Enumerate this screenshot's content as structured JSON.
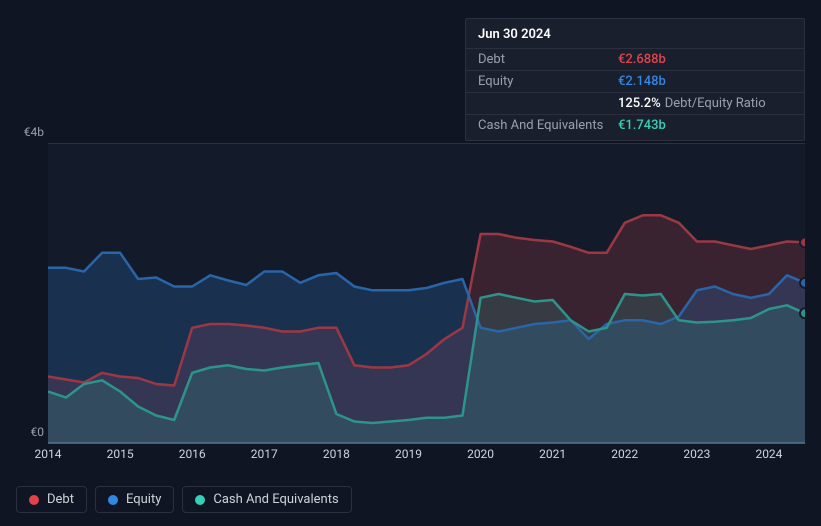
{
  "tooltip": {
    "date": "Jun 30 2024",
    "rows": [
      {
        "label": "Debt",
        "value": "€2.688b",
        "color": "#e2434b"
      },
      {
        "label": "Equity",
        "value": "€2.148b",
        "color": "#2f88e6"
      },
      {
        "label": "",
        "value": "125.2%",
        "extra": "Debt/Equity Ratio",
        "color": "#ffffff"
      },
      {
        "label": "Cash And Equivalents",
        "value": "€1.743b",
        "color": "#35d0b7"
      }
    ]
  },
  "chart": {
    "type": "area",
    "background_color": "#0f1523",
    "plot_bg": "rgba(30,37,54,0.35)",
    "grid_color": "#2a3040",
    "ylim": [
      0,
      4
    ],
    "y_ticks": [
      {
        "v": 0,
        "label": "€0"
      },
      {
        "v": 4,
        "label": "€4b"
      }
    ],
    "x_years": [
      2014,
      2015,
      2016,
      2017,
      2018,
      2019,
      2020,
      2021,
      2022,
      2023,
      2024
    ],
    "x_domain": [
      2014,
      2024.5
    ],
    "label_fontsize": 12,
    "label_color": "#9aa1ad",
    "series": [
      {
        "name": "Debt",
        "color": "#e2434b",
        "fill_opacity": 0.28,
        "line_width": 2.5,
        "data": [
          [
            2014.0,
            0.9
          ],
          [
            2014.25,
            0.86
          ],
          [
            2014.5,
            0.82
          ],
          [
            2014.75,
            0.95
          ],
          [
            2015.0,
            0.9
          ],
          [
            2015.25,
            0.88
          ],
          [
            2015.5,
            0.8
          ],
          [
            2015.75,
            0.78
          ],
          [
            2016.0,
            1.55
          ],
          [
            2016.25,
            1.6
          ],
          [
            2016.5,
            1.6
          ],
          [
            2016.75,
            1.58
          ],
          [
            2017.0,
            1.55
          ],
          [
            2017.25,
            1.5
          ],
          [
            2017.5,
            1.5
          ],
          [
            2017.75,
            1.55
          ],
          [
            2018.0,
            1.55
          ],
          [
            2018.25,
            1.05
          ],
          [
            2018.5,
            1.02
          ],
          [
            2018.75,
            1.02
          ],
          [
            2019.0,
            1.05
          ],
          [
            2019.25,
            1.2
          ],
          [
            2019.5,
            1.4
          ],
          [
            2019.75,
            1.55
          ],
          [
            2020.0,
            2.8
          ],
          [
            2020.25,
            2.8
          ],
          [
            2020.5,
            2.75
          ],
          [
            2020.75,
            2.72
          ],
          [
            2021.0,
            2.7
          ],
          [
            2021.25,
            2.63
          ],
          [
            2021.5,
            2.55
          ],
          [
            2021.75,
            2.55
          ],
          [
            2022.0,
            2.95
          ],
          [
            2022.25,
            3.05
          ],
          [
            2022.5,
            3.05
          ],
          [
            2022.75,
            2.95
          ],
          [
            2023.0,
            2.7
          ],
          [
            2023.25,
            2.7
          ],
          [
            2023.5,
            2.65
          ],
          [
            2023.75,
            2.6
          ],
          [
            2024.0,
            2.65
          ],
          [
            2024.25,
            2.7
          ],
          [
            2024.5,
            2.688
          ]
        ]
      },
      {
        "name": "Equity",
        "color": "#2f88e6",
        "fill_opacity": 0.3,
        "line_width": 2.5,
        "data": [
          [
            2014.0,
            2.35
          ],
          [
            2014.25,
            2.35
          ],
          [
            2014.5,
            2.3
          ],
          [
            2014.75,
            2.55
          ],
          [
            2015.0,
            2.55
          ],
          [
            2015.25,
            2.2
          ],
          [
            2015.5,
            2.22
          ],
          [
            2015.75,
            2.1
          ],
          [
            2016.0,
            2.1
          ],
          [
            2016.25,
            2.25
          ],
          [
            2016.5,
            2.18
          ],
          [
            2016.75,
            2.12
          ],
          [
            2017.0,
            2.3
          ],
          [
            2017.25,
            2.3
          ],
          [
            2017.5,
            2.15
          ],
          [
            2017.75,
            2.25
          ],
          [
            2018.0,
            2.28
          ],
          [
            2018.25,
            2.1
          ],
          [
            2018.5,
            2.05
          ],
          [
            2018.75,
            2.05
          ],
          [
            2019.0,
            2.05
          ],
          [
            2019.25,
            2.08
          ],
          [
            2019.5,
            2.15
          ],
          [
            2019.75,
            2.2
          ],
          [
            2020.0,
            1.55
          ],
          [
            2020.25,
            1.5
          ],
          [
            2020.5,
            1.55
          ],
          [
            2020.75,
            1.6
          ],
          [
            2021.0,
            1.62
          ],
          [
            2021.25,
            1.65
          ],
          [
            2021.5,
            1.4
          ],
          [
            2021.75,
            1.6
          ],
          [
            2022.0,
            1.65
          ],
          [
            2022.25,
            1.65
          ],
          [
            2022.5,
            1.6
          ],
          [
            2022.75,
            1.7
          ],
          [
            2023.0,
            2.05
          ],
          [
            2023.25,
            2.1
          ],
          [
            2023.5,
            2.0
          ],
          [
            2023.75,
            1.95
          ],
          [
            2024.0,
            2.0
          ],
          [
            2024.25,
            2.25
          ],
          [
            2024.5,
            2.148
          ]
        ]
      },
      {
        "name": "Cash And Equivalents",
        "color": "#35d0b7",
        "fill_opacity": 0.22,
        "line_width": 2.5,
        "data": [
          [
            2014.0,
            0.7
          ],
          [
            2014.25,
            0.62
          ],
          [
            2014.5,
            0.8
          ],
          [
            2014.75,
            0.85
          ],
          [
            2015.0,
            0.7
          ],
          [
            2015.25,
            0.5
          ],
          [
            2015.5,
            0.38
          ],
          [
            2015.75,
            0.32
          ],
          [
            2016.0,
            0.95
          ],
          [
            2016.25,
            1.02
          ],
          [
            2016.5,
            1.05
          ],
          [
            2016.75,
            1.0
          ],
          [
            2017.0,
            0.98
          ],
          [
            2017.25,
            1.02
          ],
          [
            2017.5,
            1.05
          ],
          [
            2017.75,
            1.08
          ],
          [
            2018.0,
            0.4
          ],
          [
            2018.25,
            0.3
          ],
          [
            2018.5,
            0.28
          ],
          [
            2018.75,
            0.3
          ],
          [
            2019.0,
            0.32
          ],
          [
            2019.25,
            0.35
          ],
          [
            2019.5,
            0.35
          ],
          [
            2019.75,
            0.38
          ],
          [
            2020.0,
            1.95
          ],
          [
            2020.25,
            2.0
          ],
          [
            2020.5,
            1.95
          ],
          [
            2020.75,
            1.9
          ],
          [
            2021.0,
            1.92
          ],
          [
            2021.25,
            1.65
          ],
          [
            2021.5,
            1.5
          ],
          [
            2021.75,
            1.55
          ],
          [
            2022.0,
            2.0
          ],
          [
            2022.25,
            1.98
          ],
          [
            2022.5,
            2.0
          ],
          [
            2022.75,
            1.65
          ],
          [
            2023.0,
            1.62
          ],
          [
            2023.25,
            1.63
          ],
          [
            2023.5,
            1.65
          ],
          [
            2023.75,
            1.68
          ],
          [
            2024.0,
            1.8
          ],
          [
            2024.25,
            1.85
          ],
          [
            2024.5,
            1.743
          ]
        ]
      }
    ]
  },
  "legend": [
    {
      "label": "Debt",
      "color": "#e2434b"
    },
    {
      "label": "Equity",
      "color": "#2f88e6"
    },
    {
      "label": "Cash And Equivalents",
      "color": "#35d0b7"
    }
  ]
}
